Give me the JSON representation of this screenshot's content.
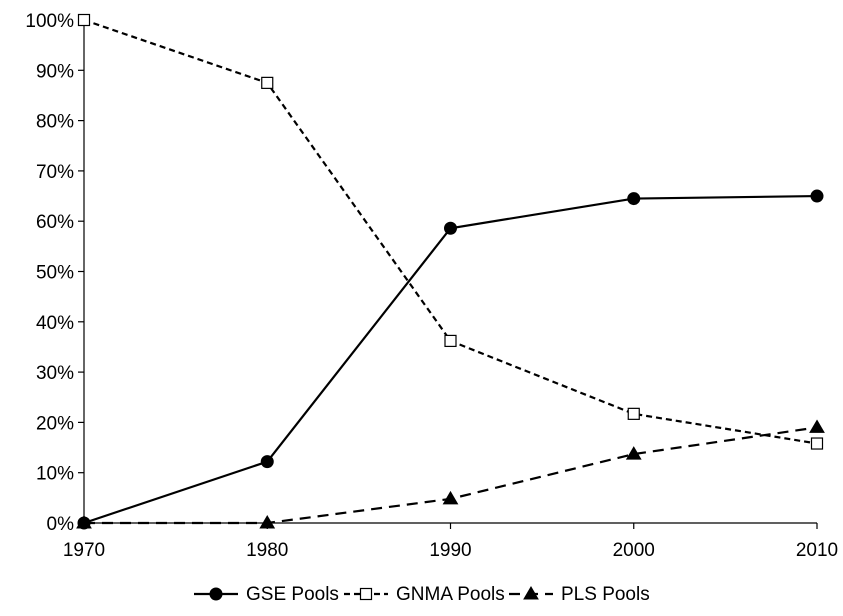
{
  "chart_data": {
    "type": "line",
    "title": "",
    "xlabel": "",
    "ylabel": "",
    "x": [
      1970,
      1980,
      1990,
      2000,
      2010
    ],
    "x_tick_labels": [
      "1970",
      "1980",
      "1990",
      "2000",
      "2010"
    ],
    "ylim": [
      0,
      100
    ],
    "y_ticks": [
      0,
      10,
      20,
      30,
      40,
      50,
      60,
      70,
      80,
      90,
      100
    ],
    "y_tick_labels": [
      "0%",
      "10%",
      "20%",
      "30%",
      "40%",
      "50%",
      "60%",
      "70%",
      "80%",
      "90%",
      "100%"
    ],
    "grid": false,
    "legend_position": "bottom",
    "series": [
      {
        "name": "GSE Pools",
        "values": [
          0,
          12.2,
          58.6,
          64.5,
          65.0
        ],
        "line_style": "solid",
        "marker": "filled-circle",
        "color": "#000000"
      },
      {
        "name": "GNMA Pools",
        "values": [
          100,
          87.5,
          36.2,
          21.7,
          15.8
        ],
        "line_style": "dotted-dash",
        "marker": "open-square",
        "color": "#000000"
      },
      {
        "name": "PLS Pools",
        "values": [
          0,
          0,
          4.8,
          13.7,
          19.0
        ],
        "line_style": "long-dash",
        "marker": "filled-triangle",
        "color": "#000000"
      }
    ]
  }
}
